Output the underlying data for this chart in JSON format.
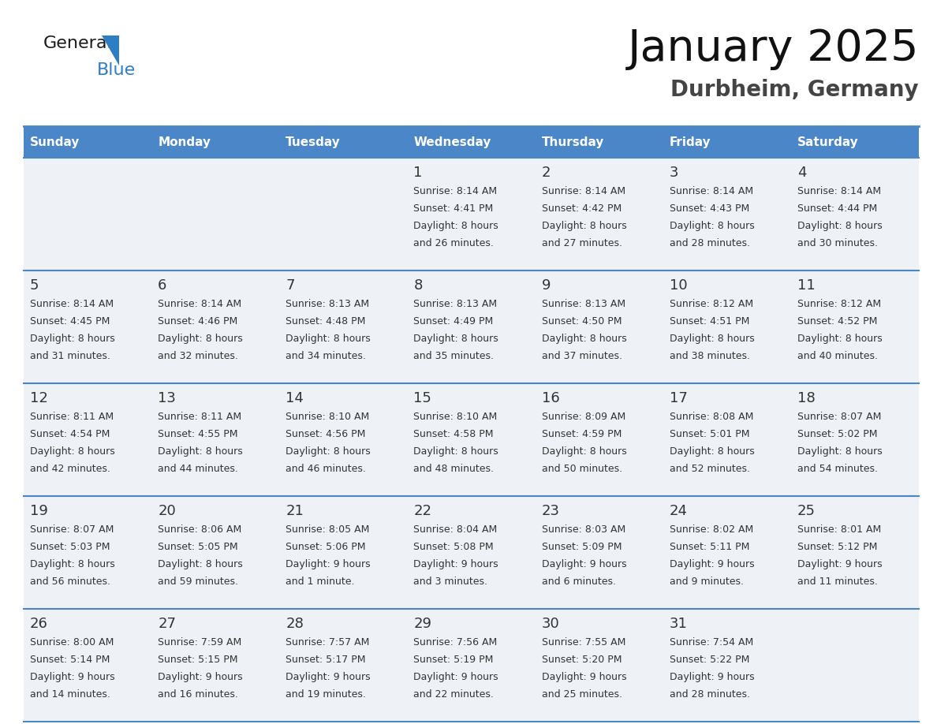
{
  "title": "January 2025",
  "subtitle": "Durbheim, Germany",
  "days_of_week": [
    "Sunday",
    "Monday",
    "Tuesday",
    "Wednesday",
    "Thursday",
    "Friday",
    "Saturday"
  ],
  "header_bg": "#4a86c8",
  "header_text": "#ffffff",
  "cell_bg_odd": "#eef2f7",
  "cell_bg_even": "#ffffff",
  "divider_color": "#4a86c8",
  "day_num_color": "#333333",
  "cell_text_color": "#333333",
  "weeks": [
    [
      {
        "day": null,
        "sunrise": null,
        "sunset": null,
        "daylight_line1": null,
        "daylight_line2": null
      },
      {
        "day": null,
        "sunrise": null,
        "sunset": null,
        "daylight_line1": null,
        "daylight_line2": null
      },
      {
        "day": null,
        "sunrise": null,
        "sunset": null,
        "daylight_line1": null,
        "daylight_line2": null
      },
      {
        "day": 1,
        "sunrise": "8:14 AM",
        "sunset": "4:41 PM",
        "daylight_line1": "Daylight: 8 hours",
        "daylight_line2": "and 26 minutes."
      },
      {
        "day": 2,
        "sunrise": "8:14 AM",
        "sunset": "4:42 PM",
        "daylight_line1": "Daylight: 8 hours",
        "daylight_line2": "and 27 minutes."
      },
      {
        "day": 3,
        "sunrise": "8:14 AM",
        "sunset": "4:43 PM",
        "daylight_line1": "Daylight: 8 hours",
        "daylight_line2": "and 28 minutes."
      },
      {
        "day": 4,
        "sunrise": "8:14 AM",
        "sunset": "4:44 PM",
        "daylight_line1": "Daylight: 8 hours",
        "daylight_line2": "and 30 minutes."
      }
    ],
    [
      {
        "day": 5,
        "sunrise": "8:14 AM",
        "sunset": "4:45 PM",
        "daylight_line1": "Daylight: 8 hours",
        "daylight_line2": "and 31 minutes."
      },
      {
        "day": 6,
        "sunrise": "8:14 AM",
        "sunset": "4:46 PM",
        "daylight_line1": "Daylight: 8 hours",
        "daylight_line2": "and 32 minutes."
      },
      {
        "day": 7,
        "sunrise": "8:13 AM",
        "sunset": "4:48 PM",
        "daylight_line1": "Daylight: 8 hours",
        "daylight_line2": "and 34 minutes."
      },
      {
        "day": 8,
        "sunrise": "8:13 AM",
        "sunset": "4:49 PM",
        "daylight_line1": "Daylight: 8 hours",
        "daylight_line2": "and 35 minutes."
      },
      {
        "day": 9,
        "sunrise": "8:13 AM",
        "sunset": "4:50 PM",
        "daylight_line1": "Daylight: 8 hours",
        "daylight_line2": "and 37 minutes."
      },
      {
        "day": 10,
        "sunrise": "8:12 AM",
        "sunset": "4:51 PM",
        "daylight_line1": "Daylight: 8 hours",
        "daylight_line2": "and 38 minutes."
      },
      {
        "day": 11,
        "sunrise": "8:12 AM",
        "sunset": "4:52 PM",
        "daylight_line1": "Daylight: 8 hours",
        "daylight_line2": "and 40 minutes."
      }
    ],
    [
      {
        "day": 12,
        "sunrise": "8:11 AM",
        "sunset": "4:54 PM",
        "daylight_line1": "Daylight: 8 hours",
        "daylight_line2": "and 42 minutes."
      },
      {
        "day": 13,
        "sunrise": "8:11 AM",
        "sunset": "4:55 PM",
        "daylight_line1": "Daylight: 8 hours",
        "daylight_line2": "and 44 minutes."
      },
      {
        "day": 14,
        "sunrise": "8:10 AM",
        "sunset": "4:56 PM",
        "daylight_line1": "Daylight: 8 hours",
        "daylight_line2": "and 46 minutes."
      },
      {
        "day": 15,
        "sunrise": "8:10 AM",
        "sunset": "4:58 PM",
        "daylight_line1": "Daylight: 8 hours",
        "daylight_line2": "and 48 minutes."
      },
      {
        "day": 16,
        "sunrise": "8:09 AM",
        "sunset": "4:59 PM",
        "daylight_line1": "Daylight: 8 hours",
        "daylight_line2": "and 50 minutes."
      },
      {
        "day": 17,
        "sunrise": "8:08 AM",
        "sunset": "5:01 PM",
        "daylight_line1": "Daylight: 8 hours",
        "daylight_line2": "and 52 minutes."
      },
      {
        "day": 18,
        "sunrise": "8:07 AM",
        "sunset": "5:02 PM",
        "daylight_line1": "Daylight: 8 hours",
        "daylight_line2": "and 54 minutes."
      }
    ],
    [
      {
        "day": 19,
        "sunrise": "8:07 AM",
        "sunset": "5:03 PM",
        "daylight_line1": "Daylight: 8 hours",
        "daylight_line2": "and 56 minutes."
      },
      {
        "day": 20,
        "sunrise": "8:06 AM",
        "sunset": "5:05 PM",
        "daylight_line1": "Daylight: 8 hours",
        "daylight_line2": "and 59 minutes."
      },
      {
        "day": 21,
        "sunrise": "8:05 AM",
        "sunset": "5:06 PM",
        "daylight_line1": "Daylight: 9 hours",
        "daylight_line2": "and 1 minute."
      },
      {
        "day": 22,
        "sunrise": "8:04 AM",
        "sunset": "5:08 PM",
        "daylight_line1": "Daylight: 9 hours",
        "daylight_line2": "and 3 minutes."
      },
      {
        "day": 23,
        "sunrise": "8:03 AM",
        "sunset": "5:09 PM",
        "daylight_line1": "Daylight: 9 hours",
        "daylight_line2": "and 6 minutes."
      },
      {
        "day": 24,
        "sunrise": "8:02 AM",
        "sunset": "5:11 PM",
        "daylight_line1": "Daylight: 9 hours",
        "daylight_line2": "and 9 minutes."
      },
      {
        "day": 25,
        "sunrise": "8:01 AM",
        "sunset": "5:12 PM",
        "daylight_line1": "Daylight: 9 hours",
        "daylight_line2": "and 11 minutes."
      }
    ],
    [
      {
        "day": 26,
        "sunrise": "8:00 AM",
        "sunset": "5:14 PM",
        "daylight_line1": "Daylight: 9 hours",
        "daylight_line2": "and 14 minutes."
      },
      {
        "day": 27,
        "sunrise": "7:59 AM",
        "sunset": "5:15 PM",
        "daylight_line1": "Daylight: 9 hours",
        "daylight_line2": "and 16 minutes."
      },
      {
        "day": 28,
        "sunrise": "7:57 AM",
        "sunset": "5:17 PM",
        "daylight_line1": "Daylight: 9 hours",
        "daylight_line2": "and 19 minutes."
      },
      {
        "day": 29,
        "sunrise": "7:56 AM",
        "sunset": "5:19 PM",
        "daylight_line1": "Daylight: 9 hours",
        "daylight_line2": "and 22 minutes."
      },
      {
        "day": 30,
        "sunrise": "7:55 AM",
        "sunset": "5:20 PM",
        "daylight_line1": "Daylight: 9 hours",
        "daylight_line2": "and 25 minutes."
      },
      {
        "day": 31,
        "sunrise": "7:54 AM",
        "sunset": "5:22 PM",
        "daylight_line1": "Daylight: 9 hours",
        "daylight_line2": "and 28 minutes."
      },
      {
        "day": null,
        "sunrise": null,
        "sunset": null,
        "daylight_line1": null,
        "daylight_line2": null
      }
    ]
  ]
}
